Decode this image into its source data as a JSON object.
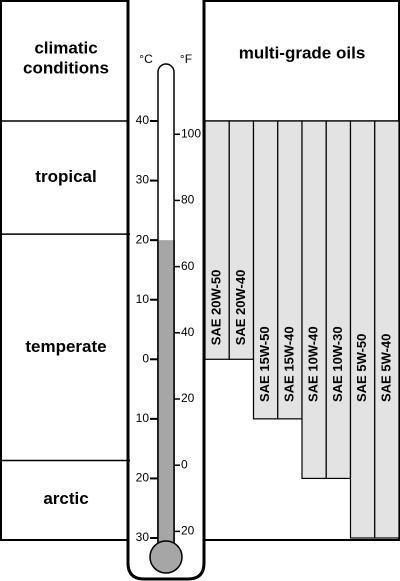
{
  "chart_data": {
    "type": "range-bar",
    "header": {
      "conditions": [
        "climatic",
        "conditions"
      ],
      "celsius": "°C",
      "fahrenheit": "°F",
      "oils": "multi-grade oils"
    },
    "ylim": [
      -30,
      40
    ],
    "yticks": [
      {
        "value": -30,
        "label": "30"
      },
      {
        "value": -20,
        "label": "20"
      },
      {
        "value": -10,
        "label": "10"
      },
      0,
      10,
      20,
      30,
      40
    ],
    "y2lim": [
      -22,
      104
    ],
    "y2ticks": [
      {
        "value": -20,
        "label": "20"
      },
      0,
      20,
      40,
      60,
      80,
      100
    ],
    "thermometer_level": 20,
    "zones": [
      {
        "name": "tropical",
        "from": 21,
        "to": 40
      },
      {
        "name": "temperate",
        "from": -17,
        "to": 21
      },
      {
        "name": "arctic",
        "from": -30,
        "to": -17
      }
    ],
    "categories": [
      "SAE 20W-50",
      "SAE 20W-40",
      "SAE 15W-50",
      "SAE 15W-40",
      "SAE 10W-40",
      "SAE 10W-30",
      "SAE 5W-50",
      "SAE 5W-40"
    ],
    "low": [
      0,
      0,
      -10,
      -10,
      -20,
      -20,
      -30,
      -30
    ],
    "high": [
      40,
      40,
      40,
      40,
      40,
      40,
      40,
      40
    ],
    "color": "#e3e3e3",
    "thermometer_color": "#a6a6a6"
  }
}
